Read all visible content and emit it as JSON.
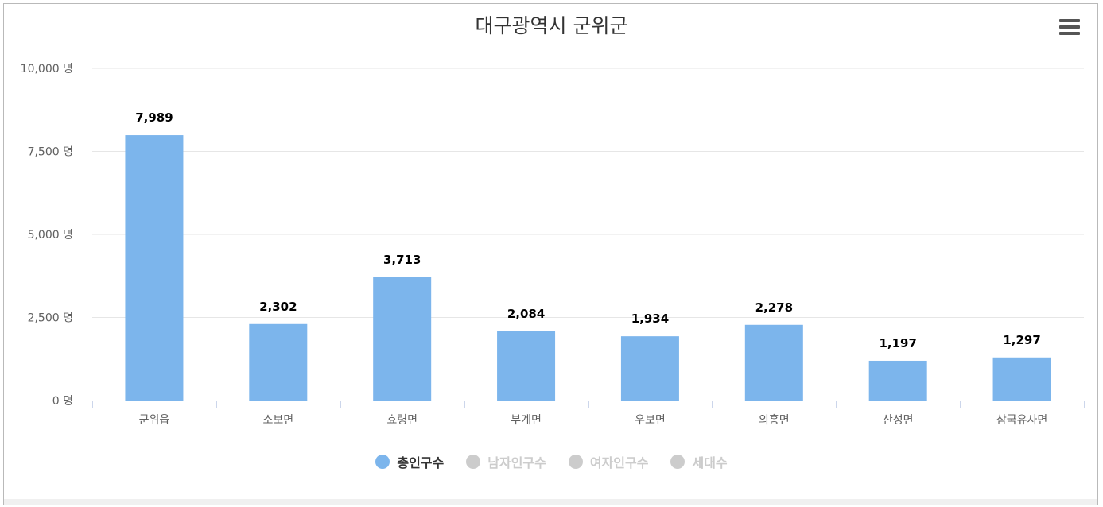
{
  "chart_data": {
    "type": "bar",
    "title": "대구광역시 군위군",
    "categories": [
      "군위읍",
      "소보면",
      "효령면",
      "부계면",
      "우보면",
      "의흥면",
      "산성면",
      "삼국유사면"
    ],
    "series": [
      {
        "name": "총인구수",
        "values": [
          7989,
          2302,
          3713,
          2084,
          1934,
          2278,
          1197,
          1297
        ]
      }
    ],
    "data_labels": [
      "7,989",
      "2,302",
      "3,713",
      "2,084",
      "1,934",
      "2,278",
      "1,197",
      "1,297"
    ],
    "y_ticks": [
      "0 명",
      "2,500 명",
      "5,000 명",
      "7,500 명",
      "10,000 명"
    ],
    "y_tick_values": [
      0,
      2500,
      5000,
      7500,
      10000
    ],
    "ylim": [
      0,
      10000
    ],
    "grid": true,
    "legend_position": "bottom-center",
    "colors": {
      "bar": "#7cb5ec",
      "inactive": "#cccccc",
      "grid": "#e6e6e6"
    }
  },
  "legend": [
    {
      "label": "총인구수",
      "active": true
    },
    {
      "label": "남자인구수",
      "active": false
    },
    {
      "label": "여자인구수",
      "active": false
    },
    {
      "label": "세대수",
      "active": false
    }
  ],
  "menu_icon": "hamburger-menu-icon"
}
